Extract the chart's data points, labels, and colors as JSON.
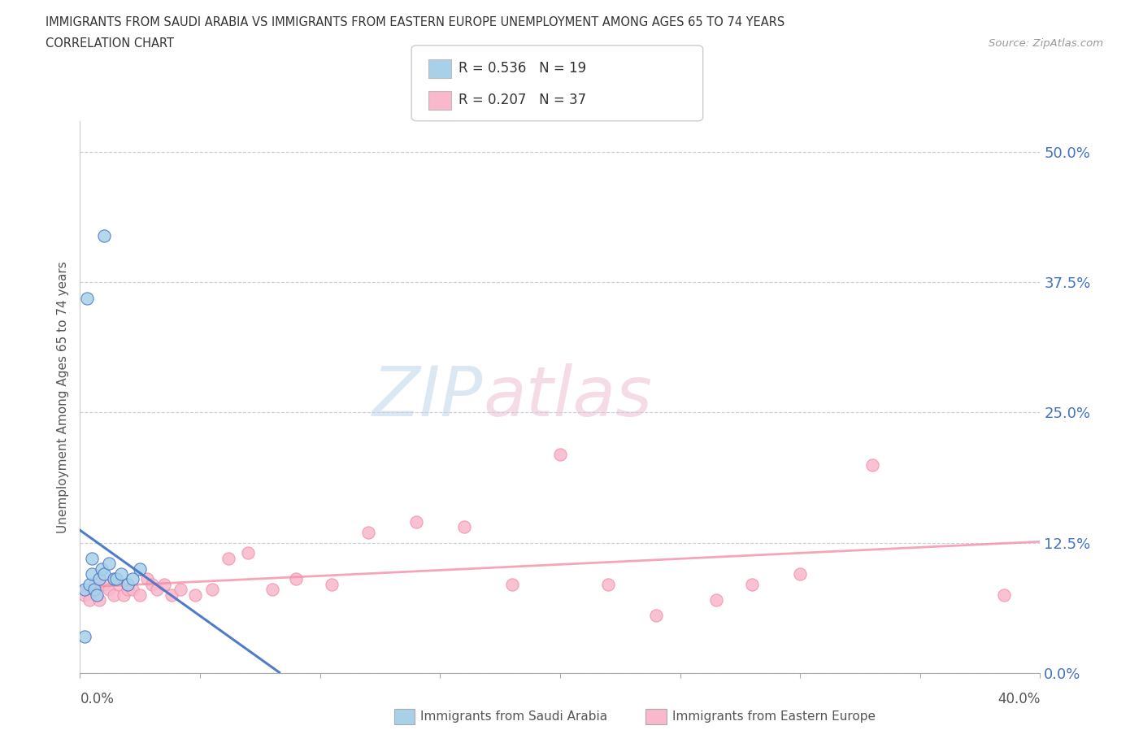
{
  "title_line1": "IMMIGRANTS FROM SAUDI ARABIA VS IMMIGRANTS FROM EASTERN EUROPE UNEMPLOYMENT AMONG AGES 65 TO 74 YEARS",
  "title_line2": "CORRELATION CHART",
  "source_text": "Source: ZipAtlas.com",
  "ylabel": "Unemployment Among Ages 65 to 74 years",
  "ytick_values": [
    0.0,
    12.5,
    25.0,
    37.5,
    50.0
  ],
  "xmin": 0.0,
  "xmax": 40.0,
  "ymin": 0.0,
  "ymax": 53.0,
  "legend_r1": "R = 0.536",
  "legend_n1": "N = 19",
  "legend_r2": "R = 0.207",
  "legend_n2": "N = 37",
  "color_saudi": "#A8D0E8",
  "color_eastern": "#F9B8CC",
  "color_saudi_dark": "#4472C4",
  "color_eastern_dark": "#F48FA8",
  "watermark_zip_color": "#C8DDEF",
  "watermark_atlas_color": "#F0C8D8",
  "saudi_x": [
    0.2,
    0.3,
    0.4,
    0.5,
    0.5,
    0.6,
    0.7,
    0.8,
    0.9,
    1.0,
    1.0,
    1.2,
    1.4,
    1.5,
    1.7,
    2.0,
    2.2,
    2.5,
    0.2
  ],
  "saudi_y": [
    8.0,
    36.0,
    8.5,
    9.5,
    11.0,
    8.0,
    7.5,
    9.0,
    10.0,
    42.0,
    9.5,
    10.5,
    9.0,
    9.0,
    9.5,
    8.5,
    9.0,
    10.0,
    3.5
  ],
  "eastern_x": [
    0.2,
    0.4,
    0.6,
    0.8,
    1.0,
    1.2,
    1.4,
    1.6,
    1.8,
    2.0,
    2.2,
    2.5,
    2.8,
    3.0,
    3.2,
    3.5,
    3.8,
    4.2,
    4.8,
    5.5,
    6.2,
    7.0,
    8.0,
    9.0,
    10.5,
    12.0,
    14.0,
    16.0,
    18.0,
    20.0,
    22.0,
    24.0,
    26.5,
    28.0,
    30.0,
    33.0,
    38.5
  ],
  "eastern_y": [
    7.5,
    7.0,
    8.5,
    7.0,
    8.5,
    8.0,
    7.5,
    8.5,
    7.5,
    8.0,
    8.0,
    7.5,
    9.0,
    8.5,
    8.0,
    8.5,
    7.5,
    8.0,
    7.5,
    8.0,
    11.0,
    11.5,
    8.0,
    9.0,
    8.5,
    13.5,
    14.5,
    14.0,
    8.5,
    21.0,
    8.5,
    5.5,
    7.0,
    8.5,
    9.5,
    20.0,
    7.5
  ]
}
